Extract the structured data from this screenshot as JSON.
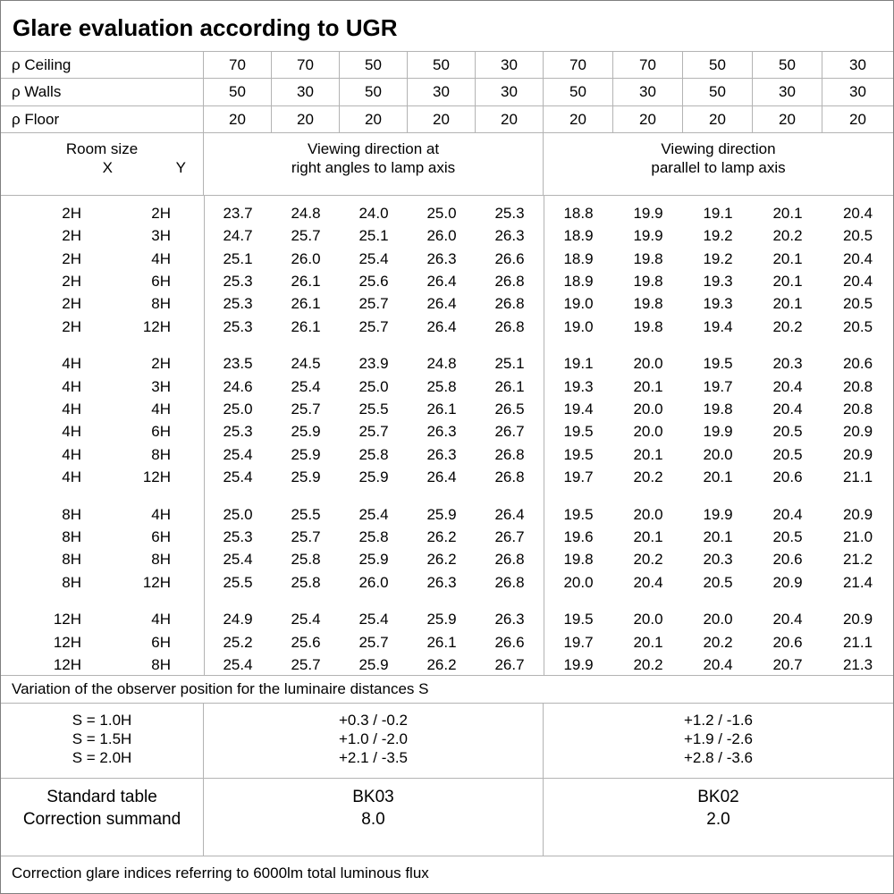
{
  "title": "Glare evaluation according to UGR",
  "colors": {
    "background": "#ffffff",
    "text": "#000000",
    "grid_line": "#b3b3b3",
    "outer_border": "#808080"
  },
  "reflectance": {
    "rows": [
      {
        "label": "ρ Ceiling",
        "values": [
          "70",
          "70",
          "50",
          "50",
          "30",
          "70",
          "70",
          "50",
          "50",
          "30"
        ]
      },
      {
        "label": "ρ Walls",
        "values": [
          "50",
          "30",
          "50",
          "30",
          "30",
          "50",
          "30",
          "50",
          "30",
          "30"
        ]
      },
      {
        "label": "ρ Floor",
        "values": [
          "20",
          "20",
          "20",
          "20",
          "20",
          "20",
          "20",
          "20",
          "20",
          "20"
        ]
      }
    ]
  },
  "columns": {
    "room_size_label": "Room size",
    "x_label": "X",
    "y_label": "Y",
    "right_angles_line1": "Viewing direction at",
    "right_angles_line2": "right angles to lamp axis",
    "parallel_line1": "Viewing direction",
    "parallel_line2": "parallel to lamp axis"
  },
  "ugr_table": {
    "groups": [
      {
        "rows": [
          {
            "x": "2H",
            "y": "2H",
            "right_angles": [
              "23.7",
              "24.8",
              "24.0",
              "25.0",
              "25.3"
            ],
            "parallel": [
              "18.8",
              "19.9",
              "19.1",
              "20.1",
              "20.4"
            ]
          },
          {
            "x": "2H",
            "y": "3H",
            "right_angles": [
              "24.7",
              "25.7",
              "25.1",
              "26.0",
              "26.3"
            ],
            "parallel": [
              "18.9",
              "19.9",
              "19.2",
              "20.2",
              "20.5"
            ]
          },
          {
            "x": "2H",
            "y": "4H",
            "right_angles": [
              "25.1",
              "26.0",
              "25.4",
              "26.3",
              "26.6"
            ],
            "parallel": [
              "18.9",
              "19.8",
              "19.2",
              "20.1",
              "20.4"
            ]
          },
          {
            "x": "2H",
            "y": "6H",
            "right_angles": [
              "25.3",
              "26.1",
              "25.6",
              "26.4",
              "26.8"
            ],
            "parallel": [
              "18.9",
              "19.8",
              "19.3",
              "20.1",
              "20.4"
            ]
          },
          {
            "x": "2H",
            "y": "8H",
            "right_angles": [
              "25.3",
              "26.1",
              "25.7",
              "26.4",
              "26.8"
            ],
            "parallel": [
              "19.0",
              "19.8",
              "19.3",
              "20.1",
              "20.5"
            ]
          },
          {
            "x": "2H",
            "y": "12H",
            "right_angles": [
              "25.3",
              "26.1",
              "25.7",
              "26.4",
              "26.8"
            ],
            "parallel": [
              "19.0",
              "19.8",
              "19.4",
              "20.2",
              "20.5"
            ]
          }
        ]
      },
      {
        "rows": [
          {
            "x": "4H",
            "y": "2H",
            "right_angles": [
              "23.5",
              "24.5",
              "23.9",
              "24.8",
              "25.1"
            ],
            "parallel": [
              "19.1",
              "20.0",
              "19.5",
              "20.3",
              "20.6"
            ]
          },
          {
            "x": "4H",
            "y": "3H",
            "right_angles": [
              "24.6",
              "25.4",
              "25.0",
              "25.8",
              "26.1"
            ],
            "parallel": [
              "19.3",
              "20.1",
              "19.7",
              "20.4",
              "20.8"
            ]
          },
          {
            "x": "4H",
            "y": "4H",
            "right_angles": [
              "25.0",
              "25.7",
              "25.5",
              "26.1",
              "26.5"
            ],
            "parallel": [
              "19.4",
              "20.0",
              "19.8",
              "20.4",
              "20.8"
            ]
          },
          {
            "x": "4H",
            "y": "6H",
            "right_angles": [
              "25.3",
              "25.9",
              "25.7",
              "26.3",
              "26.7"
            ],
            "parallel": [
              "19.5",
              "20.0",
              "19.9",
              "20.5",
              "20.9"
            ]
          },
          {
            "x": "4H",
            "y": "8H",
            "right_angles": [
              "25.4",
              "25.9",
              "25.8",
              "26.3",
              "26.8"
            ],
            "parallel": [
              "19.5",
              "20.1",
              "20.0",
              "20.5",
              "20.9"
            ]
          },
          {
            "x": "4H",
            "y": "12H",
            "right_angles": [
              "25.4",
              "25.9",
              "25.9",
              "26.4",
              "26.8"
            ],
            "parallel": [
              "19.7",
              "20.2",
              "20.1",
              "20.6",
              "21.1"
            ]
          }
        ]
      },
      {
        "rows": [
          {
            "x": "8H",
            "y": "4H",
            "right_angles": [
              "25.0",
              "25.5",
              "25.4",
              "25.9",
              "26.4"
            ],
            "parallel": [
              "19.5",
              "20.0",
              "19.9",
              "20.4",
              "20.9"
            ]
          },
          {
            "x": "8H",
            "y": "6H",
            "right_angles": [
              "25.3",
              "25.7",
              "25.8",
              "26.2",
              "26.7"
            ],
            "parallel": [
              "19.6",
              "20.1",
              "20.1",
              "20.5",
              "21.0"
            ]
          },
          {
            "x": "8H",
            "y": "8H",
            "right_angles": [
              "25.4",
              "25.8",
              "25.9",
              "26.2",
              "26.8"
            ],
            "parallel": [
              "19.8",
              "20.2",
              "20.3",
              "20.6",
              "21.2"
            ]
          },
          {
            "x": "8H",
            "y": "12H",
            "right_angles": [
              "25.5",
              "25.8",
              "26.0",
              "26.3",
              "26.8"
            ],
            "parallel": [
              "20.0",
              "20.4",
              "20.5",
              "20.9",
              "21.4"
            ]
          }
        ]
      },
      {
        "rows": [
          {
            "x": "12H",
            "y": "4H",
            "right_angles": [
              "24.9",
              "25.4",
              "25.4",
              "25.9",
              "26.3"
            ],
            "parallel": [
              "19.5",
              "20.0",
              "20.0",
              "20.4",
              "20.9"
            ]
          },
          {
            "x": "12H",
            "y": "6H",
            "right_angles": [
              "25.2",
              "25.6",
              "25.7",
              "26.1",
              "26.6"
            ],
            "parallel": [
              "19.7",
              "20.1",
              "20.2",
              "20.6",
              "21.1"
            ]
          },
          {
            "x": "12H",
            "y": "8H",
            "right_angles": [
              "25.4",
              "25.7",
              "25.9",
              "26.2",
              "26.7"
            ],
            "parallel": [
              "19.9",
              "20.2",
              "20.4",
              "20.7",
              "21.3"
            ]
          }
        ]
      }
    ]
  },
  "variation_note": "Variation of the observer position for the luminaire distances S",
  "observer_variation": {
    "rows": [
      {
        "label": "S = 1.0H",
        "right_angles": "+0.3 / -0.2",
        "parallel": "+1.2 / -1.6"
      },
      {
        "label": "S = 1.5H",
        "right_angles": "+1.0 / -2.0",
        "parallel": "+1.9 / -2.6"
      },
      {
        "label": "S = 2.0H",
        "right_angles": "+2.1 / -3.5",
        "parallel": "+2.8 / -3.6"
      }
    ]
  },
  "summary": {
    "row_labels": [
      "Standard table",
      "Correction summand"
    ],
    "right_angles": [
      "BK03",
      "8.0"
    ],
    "parallel": [
      "BK02",
      "2.0"
    ]
  },
  "footer_note": "Correction glare indices referring to 6000lm total luminous flux"
}
